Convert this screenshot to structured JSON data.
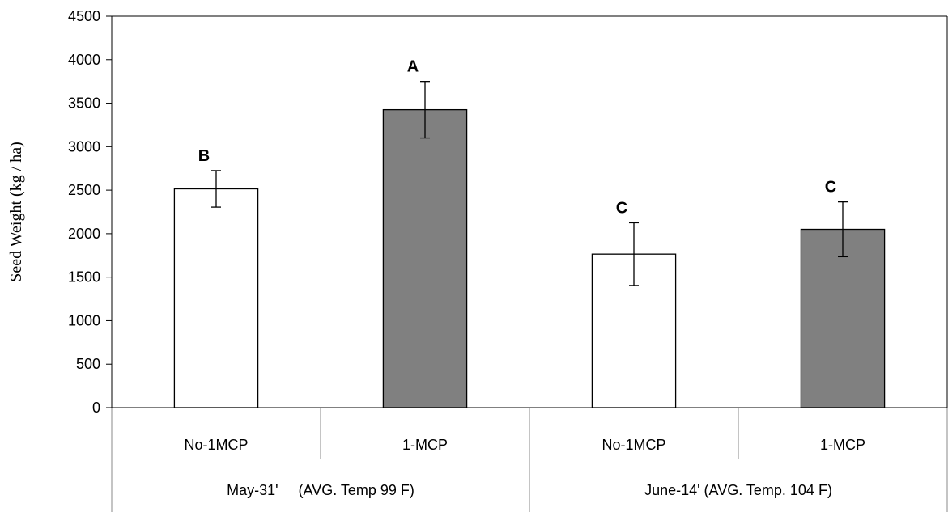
{
  "chart_data": {
    "type": "bar",
    "title": "",
    "xlabel": "",
    "ylabel": "Seed Weight (kg / ha)",
    "ylim": [
      0,
      4500
    ],
    "yticks": [
      0,
      500,
      1000,
      1500,
      2000,
      2500,
      3000,
      3500,
      4000,
      4500
    ],
    "grid": false,
    "groups": [
      {
        "label": "May-31'     (AVG. Temp 99 F)",
        "bars": [
          {
            "category": "No-1MCP",
            "value": 2515,
            "error": 210,
            "significance": "B",
            "color": "#ffffff"
          },
          {
            "category": "1-MCP",
            "value": 3425,
            "error": 325,
            "significance": "A",
            "color": "#808080"
          }
        ]
      },
      {
        "label": "June-14' (AVG. Temp. 104 F)",
        "bars": [
          {
            "category": "No-1MCP",
            "value": 1765,
            "error": 360,
            "significance": "C",
            "color": "#ffffff"
          },
          {
            "category": "1-MCP",
            "value": 2050,
            "error": 315,
            "significance": "C",
            "color": "#808080"
          }
        ]
      }
    ]
  }
}
